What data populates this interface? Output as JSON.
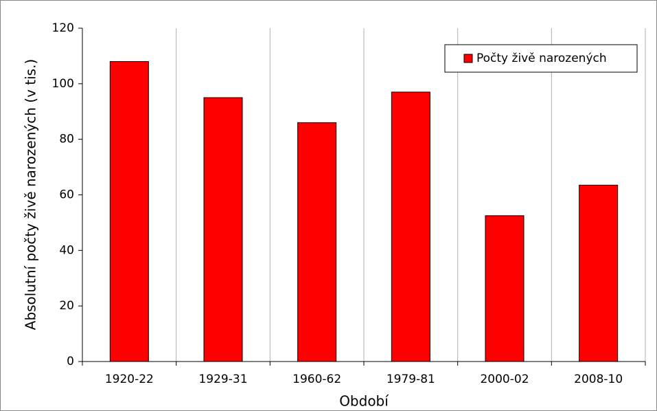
{
  "chart_data": {
    "type": "bar",
    "x_label": "Období",
    "y_label": "Absolutní počty živě narozených (v tis.)",
    "categories": [
      "1920-22",
      "1929-31",
      "1960-62",
      "1979-81",
      "2000-02",
      "2008-10"
    ],
    "series": [
      {
        "name": "Počty živě narozených",
        "color": "#ff0000",
        "values": [
          108,
          95,
          86,
          97,
          52.5,
          63.5
        ]
      }
    ],
    "ylim": [
      0,
      120
    ],
    "yticks": [
      0,
      20,
      40,
      60,
      80,
      100,
      120
    ],
    "xgrid": true,
    "legend": "top-right"
  }
}
